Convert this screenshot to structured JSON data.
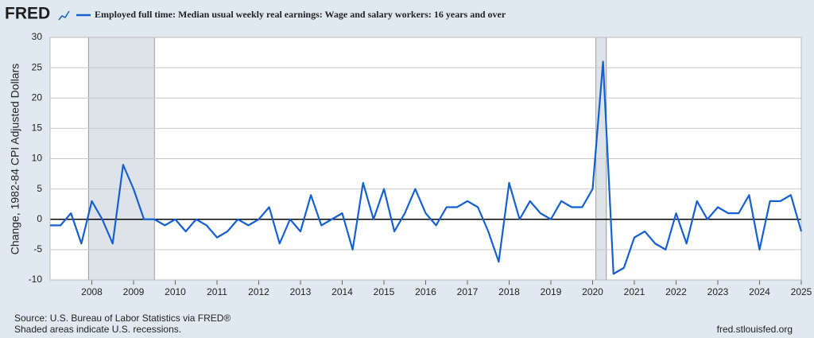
{
  "chart_data": {
    "type": "line",
    "logo": "FRED",
    "ylabel": "Change, 1982-84 CPI Adjusted Dollars",
    "source": "Source: U.S. Bureau of Labor Statistics via FRED®",
    "note": "Shaded areas indicate U.S. recessions.",
    "url": "fred.stlouisfed.org",
    "x": [
      2007,
      2007.25,
      2007.5,
      2007.75,
      2008,
      2008.25,
      2008.5,
      2008.75,
      2009,
      2009.25,
      2009.5,
      2009.75,
      2010,
      2010.25,
      2010.5,
      2010.75,
      2011,
      2011.25,
      2011.5,
      2011.75,
      2012,
      2012.25,
      2012.5,
      2012.75,
      2013,
      2013.25,
      2013.5,
      2013.75,
      2014,
      2014.25,
      2014.5,
      2014.75,
      2015,
      2015.25,
      2015.5,
      2015.75,
      2016,
      2016.25,
      2016.5,
      2016.75,
      2017,
      2017.25,
      2017.5,
      2017.75,
      2018,
      2018.25,
      2018.5,
      2018.75,
      2019,
      2019.25,
      2019.5,
      2019.75,
      2020,
      2020.25,
      2020.5,
      2020.75,
      2021,
      2021.25,
      2021.5,
      2021.75,
      2022,
      2022.25,
      2022.5,
      2022.75,
      2023,
      2023.25,
      2023.5,
      2023.75,
      2024,
      2024.25,
      2024.5,
      2024.75,
      2025
    ],
    "series": [
      {
        "name": "Employed full time: Median usual weekly real earnings: Wage and salary workers: 16 years and over",
        "color": "#1560d0",
        "values": [
          -1,
          -1,
          1,
          -4,
          3,
          0,
          -4,
          9,
          5,
          0,
          0,
          -1,
          0,
          -2,
          0,
          -1,
          -3,
          -2,
          0,
          -1,
          0,
          2,
          -4,
          0,
          -2,
          4,
          -1,
          0,
          1,
          -5,
          6,
          0,
          5,
          -2,
          1,
          5,
          1,
          -1,
          2,
          2,
          3,
          2,
          -2,
          -7,
          6,
          0,
          3,
          1,
          0,
          3,
          2,
          2,
          5,
          26,
          -9,
          -8,
          -3,
          -2,
          -4,
          -5,
          1,
          -4,
          3,
          0,
          2,
          1,
          1,
          4,
          -5,
          3,
          3,
          4,
          -2
        ]
      }
    ],
    "recessions": [
      [
        2007.92,
        2009.5
      ],
      [
        2020.08,
        2020.33
      ]
    ],
    "xlim": [
      2007,
      2025
    ],
    "xticks": [
      2008,
      2009,
      2010,
      2011,
      2012,
      2013,
      2014,
      2015,
      2016,
      2017,
      2018,
      2019,
      2020,
      2021,
      2022,
      2023,
      2024,
      2025
    ],
    "ylim": [
      -10,
      30
    ],
    "yticks": [
      -10,
      -5,
      0,
      5,
      10,
      15,
      20,
      25,
      30
    ],
    "grid": true
  }
}
